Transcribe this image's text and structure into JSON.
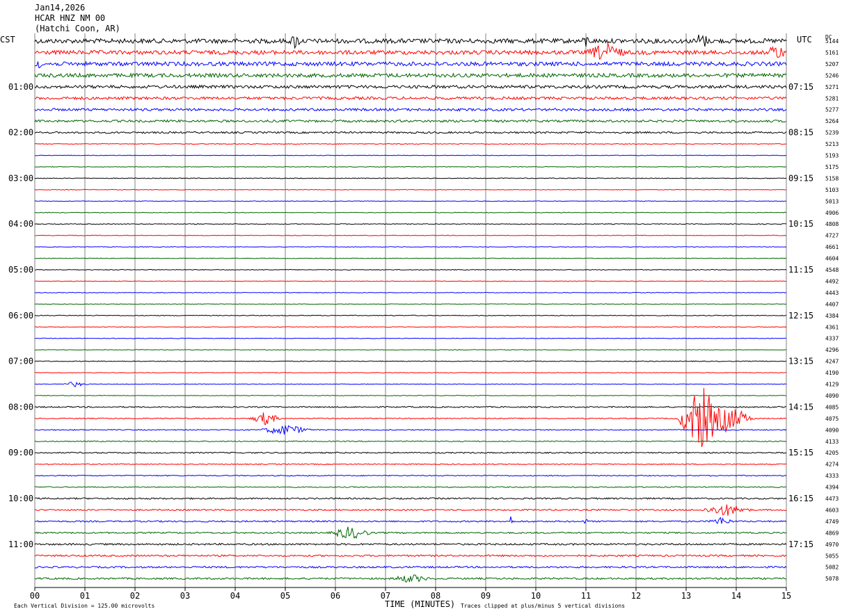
{
  "header": {
    "date": "Jan14,2026",
    "station": "HCAR HNZ NM 00",
    "location": "(Hatchi Coon, AR)"
  },
  "axes": {
    "left_tz": "CST",
    "right_tz": "UTC",
    "dc_label": "DC",
    "xlabel": "TIME (MINUTES)"
  },
  "footer": {
    "scale_note": "Each Vertical Division = 125.00 microvolts",
    "clip_note": "Traces clipped at plus/minus 5 vertical divisions"
  },
  "colors": {
    "trace_cycle": [
      "#000000",
      "#ff0000",
      "#0000ff",
      "#006400"
    ],
    "grid": "#808080"
  },
  "chart_data": {
    "type": "helicorder",
    "x_ticks": [
      "00",
      "01",
      "02",
      "03",
      "04",
      "05",
      "06",
      "07",
      "08",
      "09",
      "10",
      "11",
      "12",
      "13",
      "14",
      "15"
    ],
    "xlim": [
      0,
      15
    ],
    "row_minutes": 15,
    "rows": 48,
    "left_time_labels": [
      {
        "row": 4,
        "label": "01:00"
      },
      {
        "row": 8,
        "label": "02:00"
      },
      {
        "row": 12,
        "label": "03:00"
      },
      {
        "row": 16,
        "label": "04:00"
      },
      {
        "row": 20,
        "label": "05:00"
      },
      {
        "row": 24,
        "label": "06:00"
      },
      {
        "row": 28,
        "label": "07:00"
      },
      {
        "row": 32,
        "label": "08:00"
      },
      {
        "row": 36,
        "label": "09:00"
      },
      {
        "row": 40,
        "label": "10:00"
      },
      {
        "row": 44,
        "label": "11:00"
      }
    ],
    "right_time_labels": [
      {
        "row": 4,
        "label": "07:15"
      },
      {
        "row": 8,
        "label": "08:15"
      },
      {
        "row": 12,
        "label": "09:15"
      },
      {
        "row": 16,
        "label": "10:15"
      },
      {
        "row": 20,
        "label": "11:15"
      },
      {
        "row": 24,
        "label": "12:15"
      },
      {
        "row": 28,
        "label": "13:15"
      },
      {
        "row": 32,
        "label": "14:15"
      },
      {
        "row": 36,
        "label": "15:15"
      },
      {
        "row": 40,
        "label": "16:15"
      },
      {
        "row": 44,
        "label": "17:15"
      }
    ],
    "dc_offsets": [
      "5144",
      "5161",
      "5207",
      "5246",
      "5271",
      "5281",
      "5277",
      "5264",
      "5239",
      "5213",
      "5193",
      "5175",
      "5158",
      "5103",
      "5013",
      "4906",
      "4808",
      "4727",
      "4661",
      "4604",
      "4548",
      "4492",
      "4443",
      "4407",
      "4384",
      "4361",
      "4337",
      "4296",
      "4247",
      "4190",
      "4129",
      "4090",
      "4085",
      "4075",
      "4090",
      "4133",
      "4205",
      "4274",
      "4333",
      "4394",
      "4473",
      "4603",
      "4749",
      "4869",
      "4970",
      "5055",
      "5082",
      "5078"
    ],
    "noise_level": [
      0.9,
      0.8,
      0.8,
      0.75,
      0.6,
      0.55,
      0.5,
      0.45,
      0.35,
      0.15,
      0.12,
      0.12,
      0.15,
      0.12,
      0.12,
      0.12,
      0.15,
      0.12,
      0.12,
      0.12,
      0.15,
      0.12,
      0.12,
      0.12,
      0.15,
      0.12,
      0.12,
      0.12,
      0.15,
      0.12,
      0.12,
      0.12,
      0.25,
      0.2,
      0.2,
      0.2,
      0.25,
      0.2,
      0.2,
      0.2,
      0.3,
      0.3,
      0.3,
      0.3,
      0.35,
      0.35,
      0.35,
      0.35
    ],
    "events": [
      {
        "row": 0,
        "minute": 5.2,
        "amp": 1.6,
        "dur": 0.15
      },
      {
        "row": 0,
        "minute": 11.0,
        "amp": 1.4,
        "dur": 0.1
      },
      {
        "row": 0,
        "minute": 13.3,
        "amp": 1.8,
        "dur": 0.2
      },
      {
        "row": 1,
        "minute": 11.4,
        "amp": 1.8,
        "dur": 0.5
      },
      {
        "row": 1,
        "minute": 14.8,
        "amp": 1.6,
        "dur": 0.25
      },
      {
        "row": 2,
        "minute": 0.05,
        "amp": 1.6,
        "dur": 0.1
      },
      {
        "row": 30,
        "minute": 0.8,
        "amp": 0.5,
        "dur": 0.3
      },
      {
        "row": 33,
        "minute": 4.6,
        "amp": 1.2,
        "dur": 0.35
      },
      {
        "row": 33,
        "minute": 13.3,
        "amp": 6,
        "dur": 0.5
      },
      {
        "row": 33,
        "minute": 13.8,
        "amp": 2.5,
        "dur": 0.6
      },
      {
        "row": 34,
        "minute": 5.0,
        "amp": 1.0,
        "dur": 0.6
      },
      {
        "row": 41,
        "minute": 13.8,
        "amp": 1.1,
        "dur": 0.6
      },
      {
        "row": 42,
        "minute": 9.5,
        "amp": 1.2,
        "dur": 0.05
      },
      {
        "row": 42,
        "minute": 11.0,
        "amp": 0.9,
        "dur": 0.05
      },
      {
        "row": 42,
        "minute": 13.7,
        "amp": 0.8,
        "dur": 0.3
      },
      {
        "row": 43,
        "minute": 6.3,
        "amp": 1.2,
        "dur": 0.5
      },
      {
        "row": 47,
        "minute": 7.5,
        "amp": 0.8,
        "dur": 0.5
      }
    ]
  }
}
